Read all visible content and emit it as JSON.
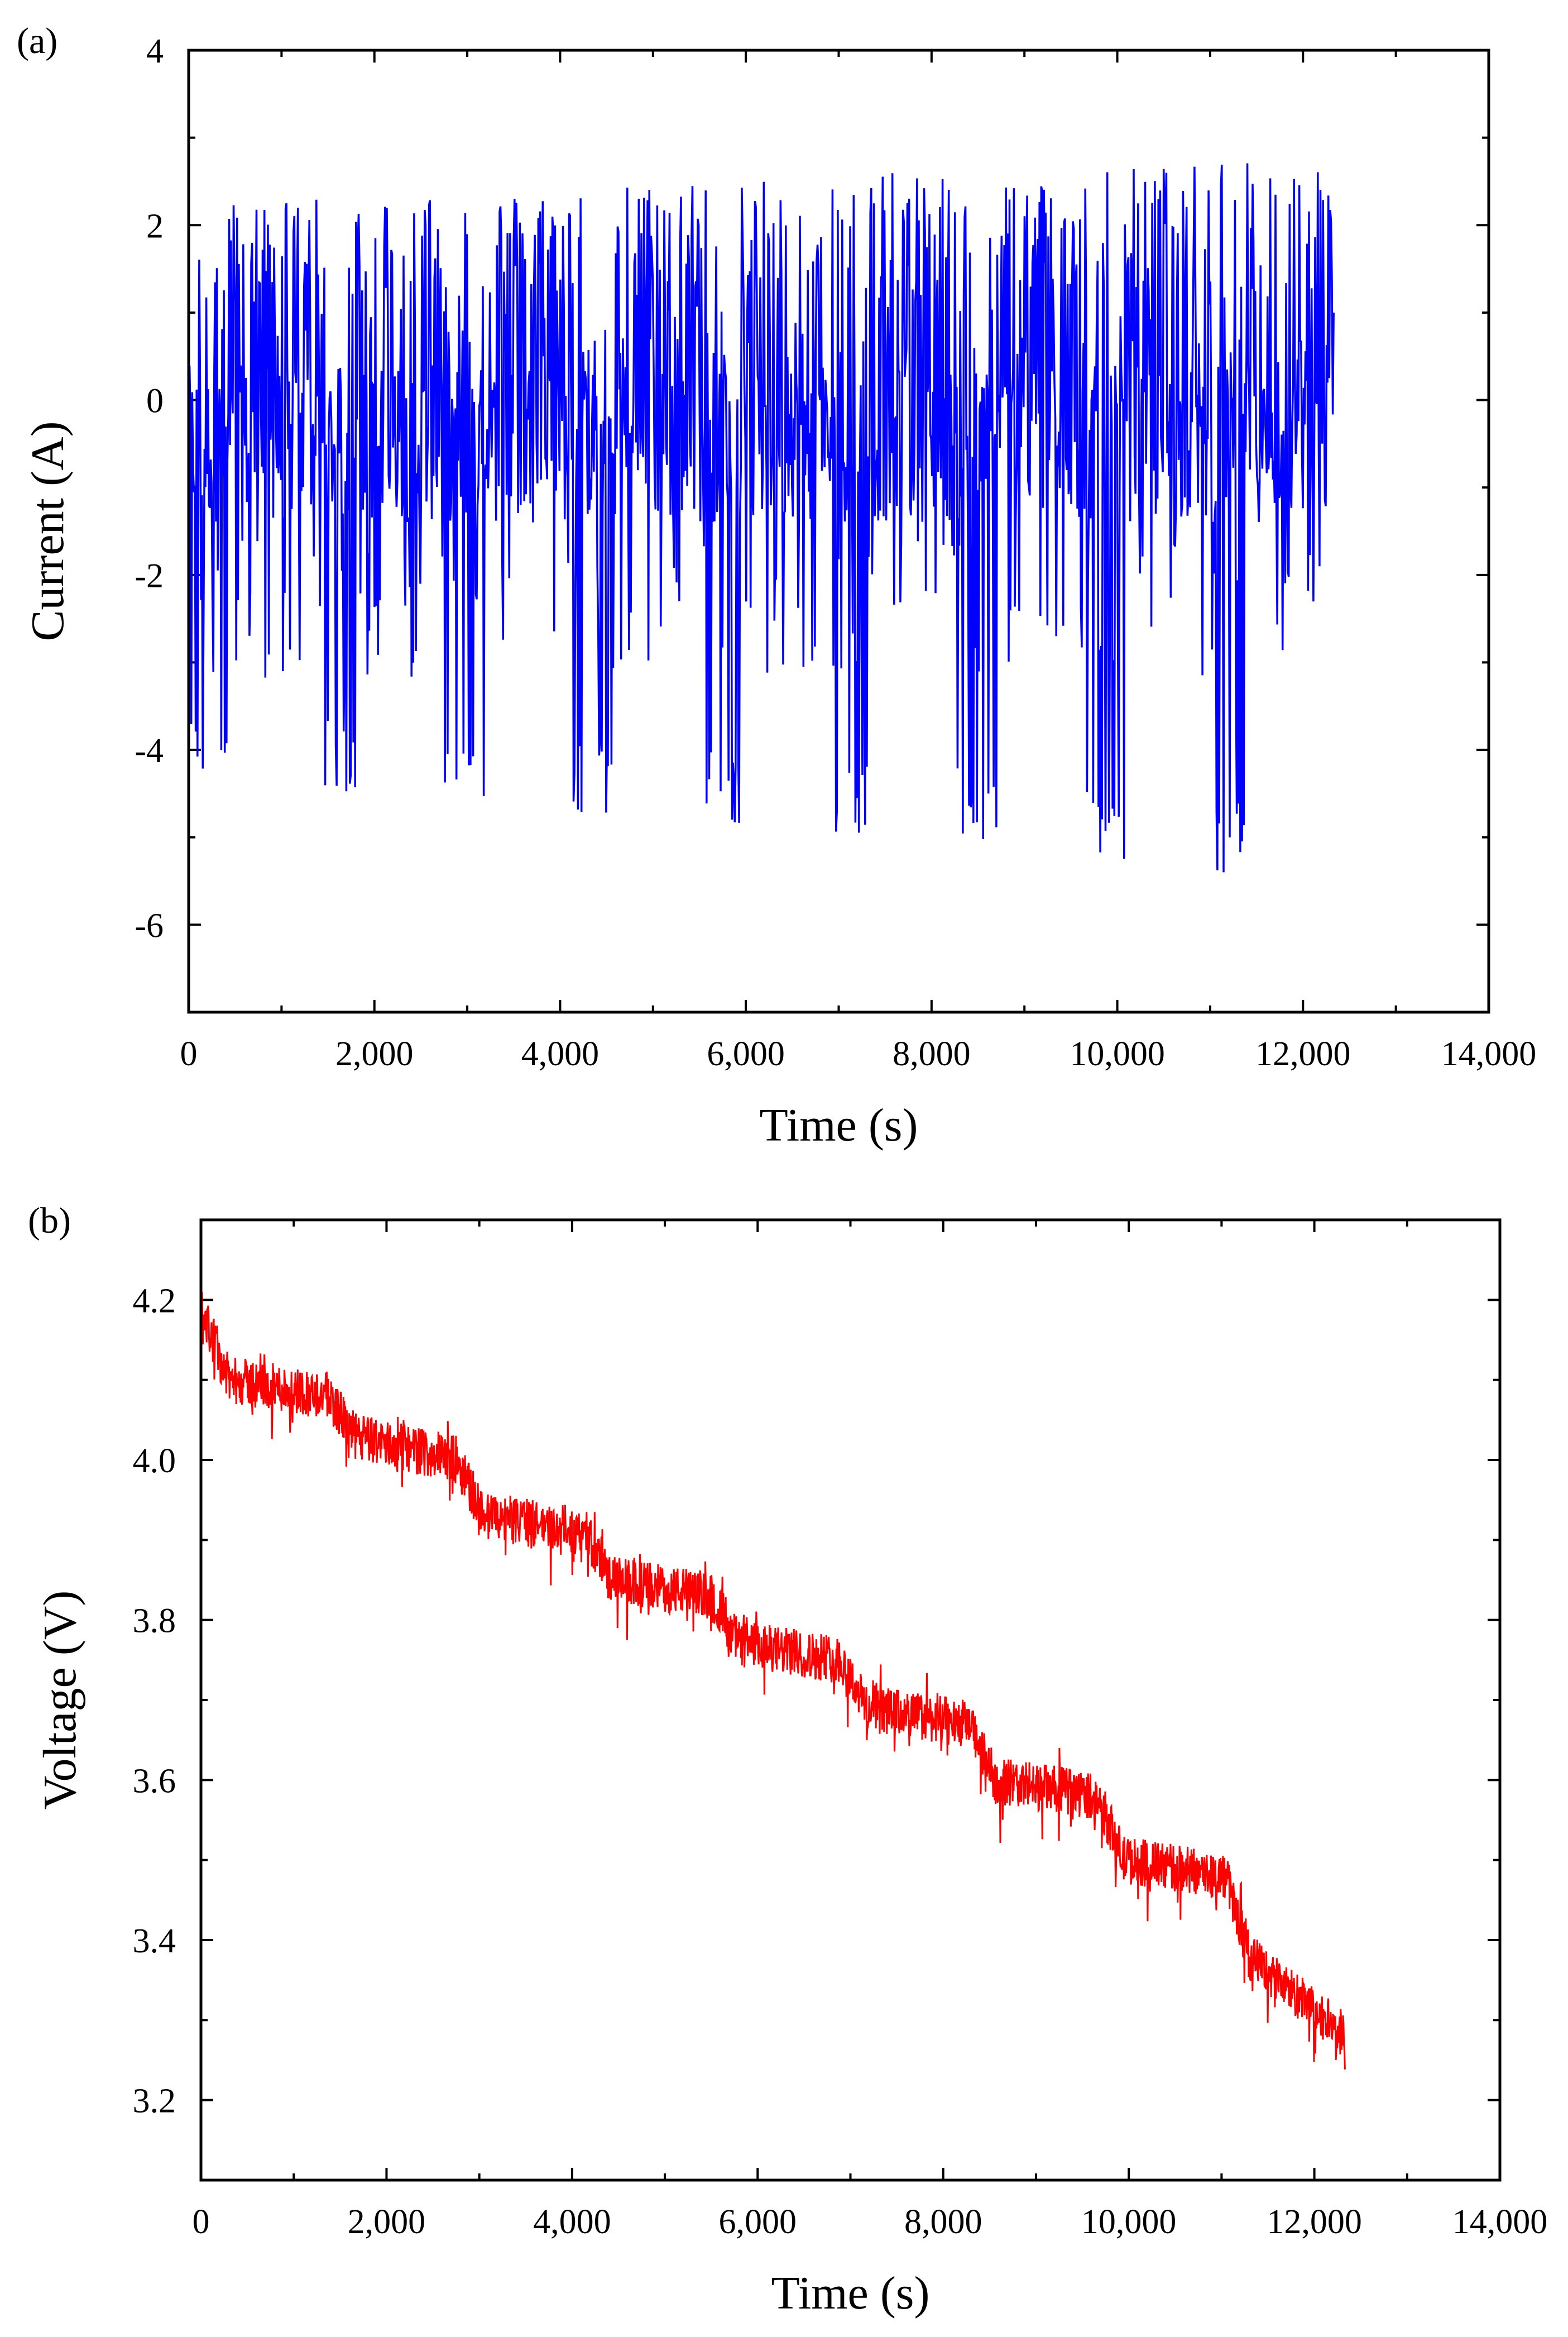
{
  "chart_data": [
    {
      "type": "line",
      "panel_label": "(a)",
      "xlabel": "Time (s)",
      "ylabel": "Current (A)",
      "xlim": [
        0,
        14000
      ],
      "ylim": [
        -7,
        4
      ],
      "xticks": [
        0,
        2000,
        4000,
        6000,
        8000,
        10000,
        12000,
        14000
      ],
      "xtick_labels": [
        "0",
        "2,000",
        "4,000",
        "6,000",
        "8,000",
        "10,000",
        "12,000",
        "14,000"
      ],
      "yticks": [
        -6,
        -4,
        -2,
        0,
        2,
        4
      ],
      "ytick_labels": [
        "-6",
        "-4",
        "-2",
        "0",
        "2",
        "4"
      ],
      "grid": false,
      "series": [
        {
          "name": "Current",
          "color": "#0000ff",
          "x_start": 0,
          "x_end": 12330,
          "baseline": -0.5,
          "peak_range": [
            1.2,
            2.8
          ],
          "trough_range": [
            -4.5,
            -5.5
          ],
          "cycle_starts": [
            0,
            1380,
            2760,
            4140,
            5520,
            6900,
            8280,
            9660,
            11040
          ],
          "cycle_troughs": [
            -4.5,
            -4.55,
            -4.65,
            -4.75,
            -4.85,
            -4.95,
            -5.1,
            -5.25,
            -5.5
          ],
          "cycle_peaks": [
            2.3,
            2.4,
            2.4,
            2.5,
            2.5,
            2.6,
            2.6,
            2.7,
            2.75
          ]
        }
      ]
    },
    {
      "type": "line",
      "panel_label": "(b)",
      "xlabel": "Time (s)",
      "ylabel": "Voltage (V)",
      "xlim": [
        0,
        14000
      ],
      "ylim": [
        3.1,
        4.3
      ],
      "xticks": [
        0,
        2000,
        4000,
        6000,
        8000,
        10000,
        12000,
        14000
      ],
      "xtick_labels": [
        "0",
        "2,000",
        "4,000",
        "6,000",
        "8,000",
        "10,000",
        "12,000",
        "14,000"
      ],
      "yticks": [
        3.2,
        3.4,
        3.6,
        3.8,
        4.0,
        4.2
      ],
      "ytick_labels": [
        "3.2",
        "3.4",
        "3.6",
        "3.8",
        "4.0",
        "4.2"
      ],
      "grid": false,
      "series": [
        {
          "name": "Voltage",
          "color": "#ff0000",
          "x_start": 0,
          "x_end": 12330,
          "trend": [
            [
              0,
              4.19
            ],
            [
              300,
              4.1
            ],
            [
              1380,
              4.08
            ],
            [
              1650,
              4.03
            ],
            [
              2760,
              4.0
            ],
            [
              3050,
              3.93
            ],
            [
              4140,
              3.91
            ],
            [
              4420,
              3.85
            ],
            [
              5520,
              3.83
            ],
            [
              5800,
              3.77
            ],
            [
              6900,
              3.75
            ],
            [
              7180,
              3.69
            ],
            [
              8280,
              3.67
            ],
            [
              8560,
              3.6
            ],
            [
              9660,
              3.58
            ],
            [
              9950,
              3.5
            ],
            [
              11040,
              3.48
            ],
            [
              11300,
              3.38
            ],
            [
              12330,
              3.28
            ]
          ],
          "noise_amplitude": 0.03
        }
      ]
    }
  ]
}
